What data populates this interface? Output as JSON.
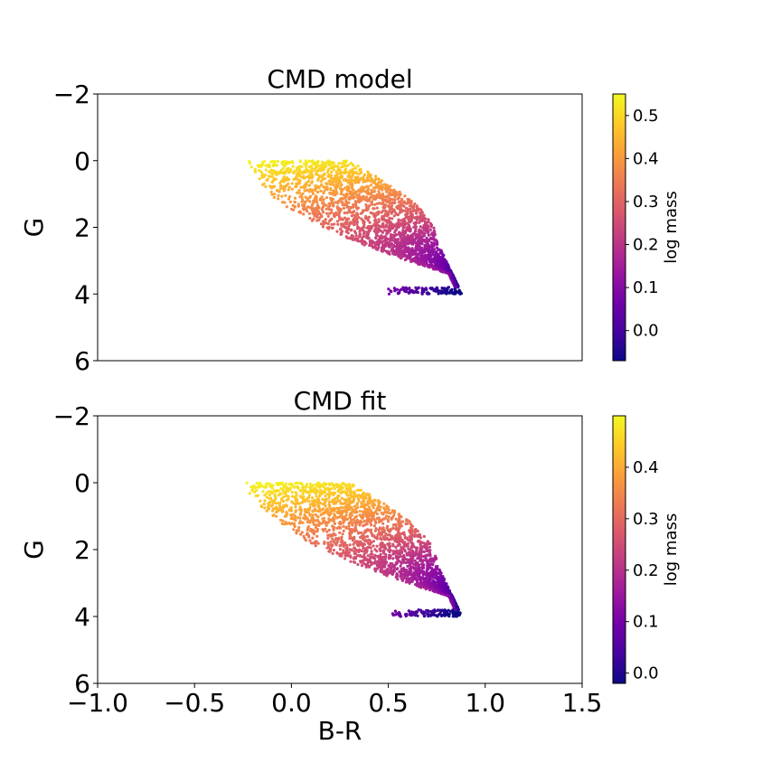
{
  "chart_data": [
    {
      "type": "scatter",
      "title": "CMD model",
      "xlabel": "",
      "ylabel": "G",
      "xlim": [
        -1.0,
        1.5
      ],
      "ylim": [
        6,
        -2
      ],
      "y_inverted": true,
      "x_ticks_visible": false,
      "yticks": [
        "−2",
        "0",
        "2",
        "4",
        "6"
      ],
      "ytick_values": [
        -2,
        0,
        2,
        4,
        6
      ],
      "colormap": "plasma",
      "colorbar": {
        "label": "log mass",
        "range": [
          -0.07,
          0.55
        ],
        "ticks": [
          "0.0",
          "0.1",
          "0.2",
          "0.3",
          "0.4",
          "0.5"
        ],
        "tick_values": [
          0.0,
          0.1,
          0.2,
          0.3,
          0.4,
          0.5
        ]
      },
      "region": {
        "description_points_BR_G": [
          [
            -0.24,
            0.0
          ],
          [
            0.3,
            0.0
          ],
          [
            0.6,
            0.8
          ],
          [
            0.78,
            2.6
          ],
          [
            0.88,
            4.0
          ],
          [
            0.5,
            4.0
          ],
          [
            0.1,
            2.3
          ],
          [
            -0.24,
            0.0
          ]
        ],
        "color_range": [
          -0.07,
          0.55
        ]
      },
      "grid": false
    },
    {
      "type": "scatter",
      "title": "CMD fit",
      "xlabel": "B-R",
      "ylabel": "G",
      "xlim": [
        -1.0,
        1.5
      ],
      "ylim": [
        6,
        -2
      ],
      "y_inverted": true,
      "xticks": [
        "−1.0",
        "−0.5",
        "0.0",
        "0.5",
        "1.0",
        "1.5"
      ],
      "xtick_values": [
        -1.0,
        -0.5,
        0.0,
        0.5,
        1.0,
        1.5
      ],
      "yticks": [
        "−2",
        "0",
        "2",
        "4",
        "6"
      ],
      "ytick_values": [
        -2,
        0,
        2,
        4,
        6
      ],
      "colormap": "plasma",
      "colorbar": {
        "label": "log mass",
        "range": [
          -0.02,
          0.5
        ],
        "ticks": [
          "0.0",
          "0.1",
          "0.2",
          "0.3",
          "0.4"
        ],
        "tick_values": [
          0.0,
          0.1,
          0.2,
          0.3,
          0.4
        ]
      },
      "region": {
        "description_points_BR_G": [
          [
            -0.24,
            0.0
          ],
          [
            0.3,
            0.0
          ],
          [
            0.6,
            0.8
          ],
          [
            0.78,
            2.6
          ],
          [
            0.88,
            4.0
          ],
          [
            0.5,
            4.0
          ],
          [
            0.1,
            2.3
          ],
          [
            -0.24,
            0.0
          ]
        ],
        "color_range": [
          -0.02,
          0.5
        ]
      },
      "grid": false
    }
  ],
  "colors": {
    "plasma_stops": [
      "#0d0887",
      "#46039f",
      "#7201a8",
      "#9c179e",
      "#bd3786",
      "#d8576b",
      "#ed7953",
      "#fb9f3a",
      "#fdca26",
      "#f0f921"
    ]
  }
}
